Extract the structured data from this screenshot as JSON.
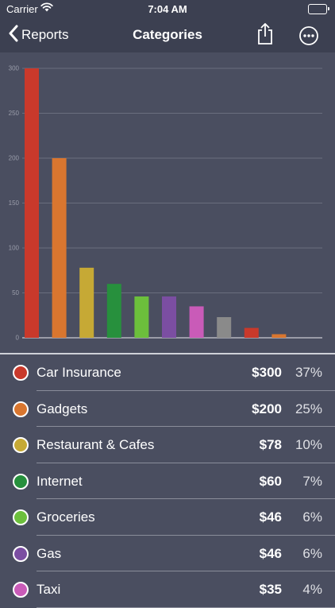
{
  "status_bar": {
    "carrier": "Carrier",
    "time": "7:04 AM"
  },
  "nav": {
    "back_label": "Reports",
    "title": "Categories"
  },
  "chart_data": {
    "type": "bar",
    "categories": [
      "Car Insurance",
      "Gadgets",
      "Restaurant & Cafes",
      "Internet",
      "Groceries",
      "Gas",
      "Taxi",
      "",
      "",
      ""
    ],
    "values": [
      300,
      200,
      78,
      60,
      46,
      46,
      35,
      23,
      11,
      4
    ],
    "colors": [
      "#c9392b",
      "#d9762f",
      "#c6a935",
      "#27903d",
      "#6cbf3c",
      "#7b4ea2",
      "#c95bb8",
      "#8a8a8a",
      "#c9392b",
      "#d9762f"
    ],
    "yticks": [
      "0",
      "50",
      "100",
      "150",
      "200",
      "250",
      "300"
    ],
    "ylim": [
      0,
      300
    ],
    "grid": true
  },
  "categories": [
    {
      "name": "Car Insurance",
      "amount": "$300",
      "percent": "37%",
      "color": "#c9392b"
    },
    {
      "name": "Gadgets",
      "amount": "$200",
      "percent": "25%",
      "color": "#d9762f"
    },
    {
      "name": "Restaurant & Cafes",
      "amount": "$78",
      "percent": "10%",
      "color": "#c6a935"
    },
    {
      "name": "Internet",
      "amount": "$60",
      "percent": "7%",
      "color": "#27903d"
    },
    {
      "name": "Groceries",
      "amount": "$46",
      "percent": "6%",
      "color": "#6cbf3c"
    },
    {
      "name": "Gas",
      "amount": "$46",
      "percent": "6%",
      "color": "#7b4ea2"
    },
    {
      "name": "Taxi",
      "amount": "$35",
      "percent": "4%",
      "color": "#c95bb8"
    }
  ]
}
